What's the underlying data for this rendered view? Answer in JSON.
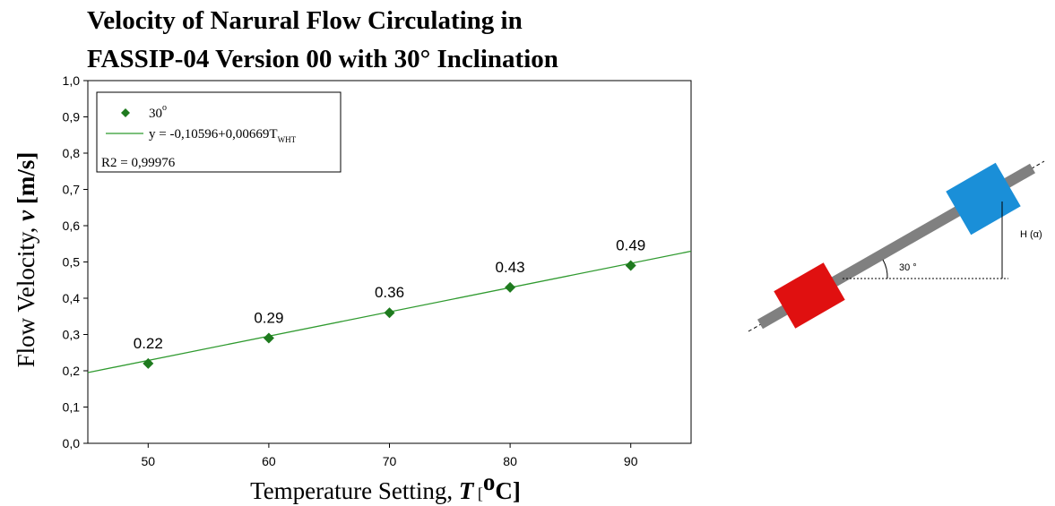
{
  "chart_data": {
    "type": "scatter",
    "title_lines": [
      "Velocity of Narural Flow Circulating in",
      "FASSIP-04 Version 00 with 30° Inclination"
    ],
    "ylabel": {
      "text": "Flow Velocity, ",
      "var": "v",
      "unit": " [m/s]"
    },
    "xlabel": {
      "text": "Temperature Setting, ",
      "var": "T",
      "unit_open": " [",
      "unit_sup": "o",
      "unit": "C]"
    },
    "xlim": [
      45,
      95
    ],
    "xticks": [
      50,
      60,
      70,
      80,
      90
    ],
    "ylim": [
      0,
      1
    ],
    "yticks": [
      {
        "value": 0,
        "label": "0,0"
      },
      {
        "value": 0.1,
        "label": "0,1"
      },
      {
        "value": 0.2,
        "label": "0,2"
      },
      {
        "value": 0.3,
        "label": "0,3"
      },
      {
        "value": 0.4,
        "label": "0,4"
      },
      {
        "value": 0.5,
        "label": "0,5"
      },
      {
        "value": 0.6,
        "label": "0,6"
      },
      {
        "value": 0.7,
        "label": "0,7"
      },
      {
        "value": 0.8,
        "label": "0,8"
      },
      {
        "value": 0.9,
        "label": "0,9"
      },
      {
        "value": 1,
        "label": "1,0"
      }
    ],
    "grid": false,
    "legend": "top-left",
    "series": [
      {
        "name": "30",
        "name_sup": "o",
        "type": "scatter",
        "color": "#1e7a1e",
        "x": [
          50,
          60,
          70,
          80,
          90
        ],
        "values": [
          0.22,
          0.29,
          0.36,
          0.43,
          0.49
        ]
      },
      {
        "name": "y = -0,10596+0,00669T",
        "name_sub": "WHT",
        "type": "line",
        "color": "#2f9a2f",
        "x": [
          45,
          95
        ],
        "values": [
          0.19509,
          0.52959
        ]
      }
    ],
    "annotation": "R2 = 0,99976"
  },
  "diagram": {
    "angle_label": "30 °",
    "height_label": "H (α)"
  }
}
